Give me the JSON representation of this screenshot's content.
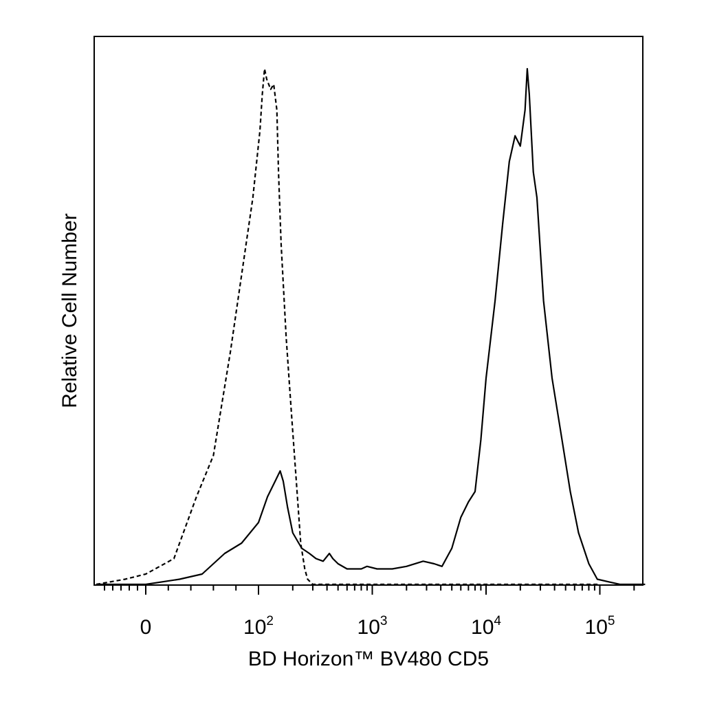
{
  "chart_data": {
    "type": "line",
    "title": "",
    "xlabel": "BD Horizon™ BV480 CD5",
    "ylabel": "Relative Cell Number",
    "x_scale": "biexponential (linear near 0, log above 10^2)",
    "xlim": [
      -120,
      250000
    ],
    "ylim": [
      0,
      100
    ],
    "y_tick_labels": "none",
    "grid": false,
    "legend": "none",
    "x_ticks": [
      {
        "value": 0,
        "base": "0",
        "exp": ""
      },
      {
        "value": 100,
        "base": "10",
        "exp": "2"
      },
      {
        "value": 1000,
        "base": "10",
        "exp": "3"
      },
      {
        "value": 10000,
        "base": "10",
        "exp": "4"
      },
      {
        "value": 100000,
        "base": "10",
        "exp": "5"
      }
    ],
    "series": [
      {
        "style": "dashed",
        "color": "#000000",
        "x": [
          -120,
          -50,
          0,
          25,
          45,
          60,
          75,
          85,
          95,
          103,
          108,
          113,
          118,
          128,
          136,
          145,
          150,
          158,
          175,
          195,
          215,
          235,
          255,
          270,
          300,
          400,
          1000,
          100000
        ],
        "y": [
          0,
          1,
          2,
          5,
          17,
          25,
          45,
          60,
          75,
          88,
          95,
          100,
          98,
          96,
          97,
          92,
          80,
          66,
          48,
          33,
          20,
          8,
          3,
          1,
          0,
          0,
          0,
          0
        ]
      },
      {
        "style": "solid",
        "color": "#000000",
        "x": [
          -120,
          0,
          30,
          50,
          70,
          85,
          100,
          120,
          140,
          155,
          165,
          180,
          200,
          240,
          280,
          320,
          370,
          420,
          450,
          500,
          600,
          800,
          900,
          1100,
          1500,
          2000,
          2800,
          3500,
          4100,
          5000,
          6000,
          7000,
          8000,
          9000,
          10000,
          12000,
          14000,
          16000,
          18000,
          20000,
          22000,
          23000,
          24000,
          26000,
          28000,
          32000,
          38000,
          45000,
          55000,
          65000,
          80000,
          95000,
          150000,
          250000
        ],
        "y": [
          0,
          0,
          1,
          2,
          6,
          8,
          12,
          17,
          20,
          22,
          20,
          15,
          10,
          7,
          6,
          5,
          4.5,
          6,
          5,
          4,
          3,
          3,
          3.5,
          3,
          3,
          3.5,
          4.5,
          4,
          3.5,
          7,
          13,
          16,
          18,
          28,
          40,
          55,
          70,
          82,
          87,
          85,
          92,
          100,
          95,
          80,
          75,
          55,
          40,
          30,
          18,
          10,
          4,
          1,
          0,
          0
        ]
      }
    ]
  }
}
